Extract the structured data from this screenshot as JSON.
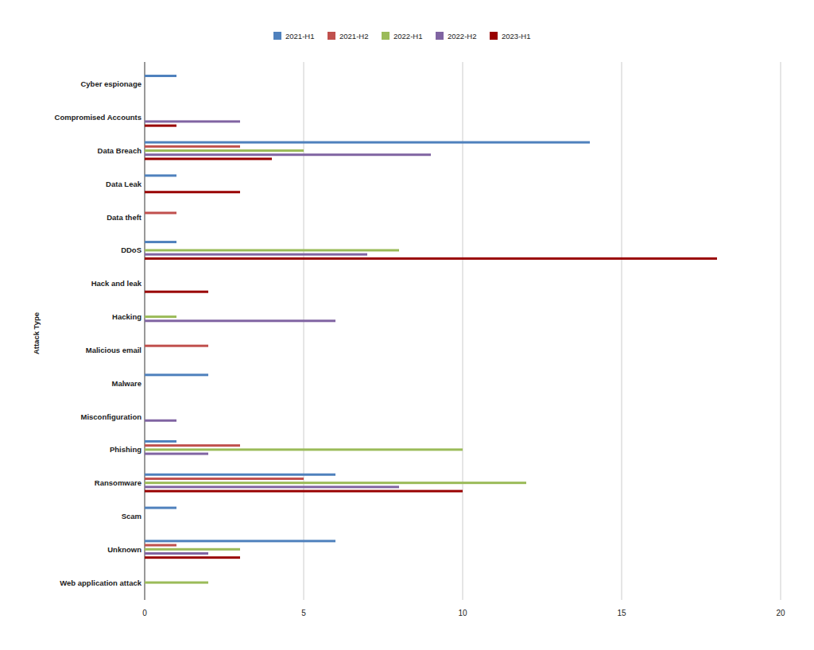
{
  "chart_data": {
    "type": "bar",
    "orientation": "horizontal",
    "grid": true,
    "legend": "top",
    "y_label": "Attack Type",
    "categories": [
      "Cyber espionage",
      "Compromised Accounts",
      "Data Breach",
      "Data Leak",
      "Data theft",
      "DDoS",
      "Hack and leak",
      "Hacking",
      "Malicious email",
      "Malware",
      "Misconfiguration",
      "Phishing",
      "Ransomware",
      "Scam",
      "Unknown",
      "Web application attack"
    ],
    "series": [
      {
        "name": "2021-H1",
        "color": "#4f81bd",
        "values": [
          1,
          0,
          14,
          1,
          0,
          1,
          0,
          0,
          0,
          2,
          0,
          1,
          6,
          1,
          6,
          0
        ]
      },
      {
        "name": "2021-H2",
        "color": "#c0504d",
        "values": [
          0,
          0,
          3,
          0,
          1,
          0,
          0,
          0,
          2,
          0,
          0,
          3,
          5,
          0,
          1,
          0
        ]
      },
      {
        "name": "2022-H1",
        "color": "#9bbb59",
        "values": [
          0,
          0,
          5,
          0,
          0,
          8,
          0,
          1,
          0,
          0,
          0,
          10,
          12,
          0,
          3,
          2
        ]
      },
      {
        "name": "2022-H2",
        "color": "#8064a2",
        "values": [
          0,
          3,
          9,
          0,
          0,
          7,
          0,
          6,
          0,
          0,
          1,
          2,
          8,
          0,
          2,
          0
        ]
      },
      {
        "name": "2023-H1",
        "color": "#990000",
        "values": [
          0,
          1,
          4,
          3,
          0,
          18,
          2,
          0,
          0,
          0,
          0,
          0,
          10,
          0,
          3,
          0
        ]
      }
    ],
    "xlim": [
      0,
      20
    ],
    "xticks": [
      0,
      5,
      10,
      15,
      20
    ]
  }
}
